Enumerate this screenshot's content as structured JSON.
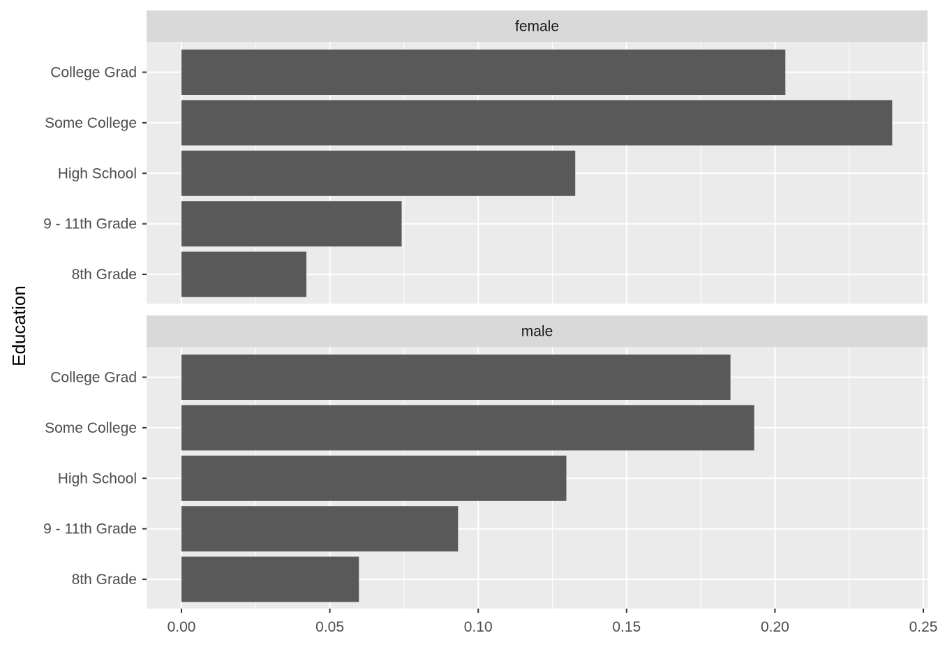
{
  "chart_data": {
    "type": "bar",
    "orientation": "horizontal",
    "ylabel": "Education",
    "xlabel": "",
    "xlim": [
      0,
      0.25
    ],
    "x_ticks": [
      "0.00",
      "0.05",
      "0.10",
      "0.15",
      "0.20",
      "0.25"
    ],
    "categories": [
      "College Grad",
      "Some College",
      "High School",
      "9 - 11th Grade",
      "8th Grade"
    ],
    "grid": true,
    "panels": [
      {
        "name": "female",
        "values": [
          0.2035,
          0.2395,
          0.1327,
          0.0742,
          0.0421
        ]
      },
      {
        "name": "male",
        "values": [
          0.185,
          0.193,
          0.1297,
          0.0932,
          0.0598
        ]
      }
    ]
  },
  "colors": {
    "bar": "#595959",
    "panel_background": "#ebebeb",
    "strip_background": "#d9d9d9",
    "grid": "#ffffff",
    "tick_text": "#4d4d4d",
    "tick_mark": "#333333"
  }
}
